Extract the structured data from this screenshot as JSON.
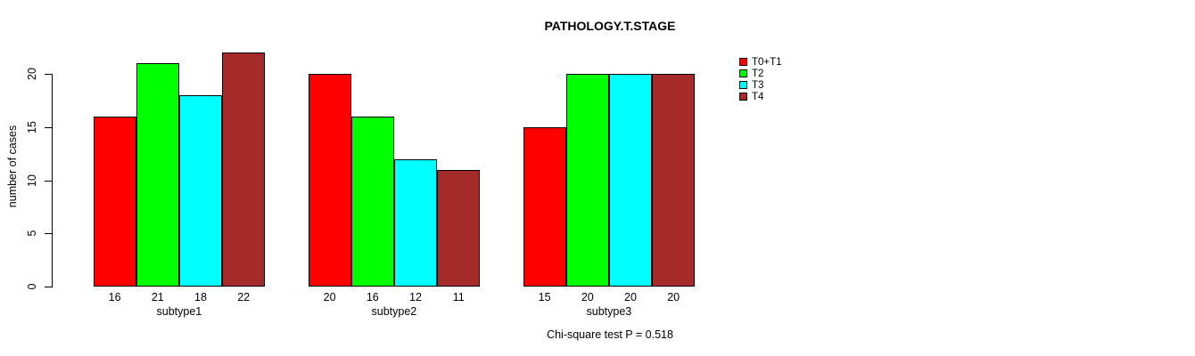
{
  "chart_data": {
    "type": "bar",
    "title": "PATHOLOGY.T.STAGE",
    "ylabel": "number of cases",
    "xlabel": "",
    "note": "Chi-square test P = 0.518",
    "categories": [
      "subtype1",
      "subtype2",
      "subtype3"
    ],
    "series": [
      {
        "name": "T0+T1",
        "color": "#ff0000",
        "values": [
          16,
          20,
          15
        ]
      },
      {
        "name": "T2",
        "color": "#00ff00",
        "values": [
          21,
          16,
          20
        ]
      },
      {
        "name": "T3",
        "color": "#00ffff",
        "values": [
          18,
          12,
          20
        ]
      },
      {
        "name": "T4",
        "color": "#a52a2a",
        "values": [
          22,
          11,
          20
        ]
      }
    ],
    "yticks": [
      0,
      5,
      10,
      15,
      20
    ],
    "ylim": [
      0,
      22
    ],
    "bar_value_labels": true,
    "legend_position": "top-right",
    "grid": false,
    "colors": {
      "background": "#ffffff",
      "axis": "#000000",
      "text": "#000000"
    }
  }
}
